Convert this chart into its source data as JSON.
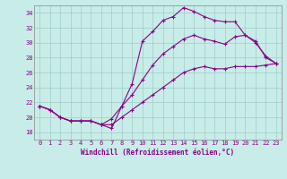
{
  "xlabel": "Windchill (Refroidissement éolien,°C)",
  "bg_color": "#c8ece8",
  "grid_color": "#a0ccc8",
  "line_color": "#880088",
  "xlim": [
    -0.5,
    23.5
  ],
  "ylim": [
    17,
    35
  ],
  "yticks": [
    18,
    20,
    22,
    24,
    26,
    28,
    30,
    32,
    34
  ],
  "xticks": [
    0,
    1,
    2,
    3,
    4,
    5,
    6,
    7,
    8,
    9,
    10,
    11,
    12,
    13,
    14,
    15,
    16,
    17,
    18,
    19,
    20,
    21,
    22,
    23
  ],
  "curve1_x": [
    0,
    1,
    2,
    3,
    4,
    5,
    6,
    7,
    8,
    9,
    10,
    11,
    12,
    13,
    14,
    15,
    16,
    17,
    18,
    19,
    20,
    21,
    22,
    23
  ],
  "curve1_y": [
    21.5,
    21.0,
    20.0,
    19.5,
    19.5,
    19.5,
    19.0,
    18.5,
    21.5,
    24.5,
    30.2,
    31.5,
    33.0,
    33.5,
    34.7,
    34.2,
    33.5,
    33.0,
    32.8,
    32.8,
    31.0,
    30.2,
    28.0,
    27.2
  ],
  "curve2_x": [
    0,
    1,
    2,
    3,
    4,
    5,
    6,
    7,
    8,
    9,
    10,
    11,
    12,
    13,
    14,
    15,
    16,
    17,
    18,
    19,
    20,
    21,
    22,
    23
  ],
  "curve2_y": [
    21.5,
    21.0,
    20.0,
    19.5,
    19.5,
    19.5,
    19.0,
    19.8,
    21.5,
    23.0,
    25.0,
    27.0,
    28.5,
    29.5,
    30.5,
    31.0,
    30.5,
    30.2,
    29.8,
    30.8,
    31.0,
    30.0,
    28.2,
    27.2
  ],
  "curve3_x": [
    0,
    1,
    2,
    3,
    4,
    5,
    6,
    7,
    8,
    9,
    10,
    11,
    12,
    13,
    14,
    15,
    16,
    17,
    18,
    19,
    20,
    21,
    22,
    23
  ],
  "curve3_y": [
    21.5,
    21.0,
    20.0,
    19.5,
    19.5,
    19.5,
    19.0,
    19.0,
    20.0,
    21.0,
    22.0,
    23.0,
    24.0,
    25.0,
    26.0,
    26.5,
    26.8,
    26.5,
    26.5,
    26.8,
    26.8,
    26.8,
    27.0,
    27.2
  ]
}
